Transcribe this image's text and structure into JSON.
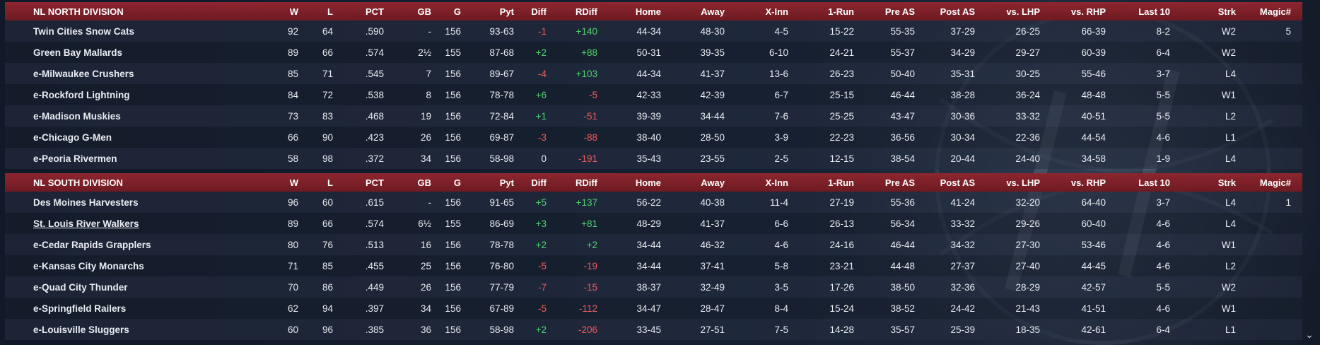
{
  "columns": {
    "w": "W",
    "l": "L",
    "pct": "PCT",
    "gb": "GB",
    "g": "G",
    "pyt": "Pyt",
    "diff": "Diff",
    "rdiff": "RDiff",
    "home": "Home",
    "away": "Away",
    "xinn": "X-Inn",
    "onerun": "1-Run",
    "preas": "Pre AS",
    "postas": "Post AS",
    "lhp": "vs. LHP",
    "rhp": "vs. RHP",
    "last10": "Last 10",
    "strk": "Strk",
    "magic": "Magic#"
  },
  "divisions": [
    {
      "name": "NL NORTH DIVISION",
      "teams": [
        {
          "name": "Twin Cities Snow Cats",
          "w": "92",
          "l": "64",
          "pct": ".590",
          "gb": "-",
          "g": "156",
          "pyt": "93-63",
          "diff": "-1",
          "rdiff": "+140",
          "home": "44-34",
          "away": "48-30",
          "xinn": "4-5",
          "onerun": "15-22",
          "preas": "55-35",
          "postas": "37-29",
          "lhp": "26-25",
          "rhp": "66-39",
          "last10": "8-2",
          "strk": "W2",
          "magic": "5"
        },
        {
          "name": "Green Bay  Mallards",
          "w": "89",
          "l": "66",
          "pct": ".574",
          "gb": "2½",
          "g": "155",
          "pyt": "87-68",
          "diff": "+2",
          "rdiff": "+88",
          "home": "50-31",
          "away": "39-35",
          "xinn": "6-10",
          "onerun": "24-21",
          "preas": "55-37",
          "postas": "34-29",
          "lhp": "29-27",
          "rhp": "60-39",
          "last10": "6-4",
          "strk": "W2",
          "magic": ""
        },
        {
          "name": "e-Milwaukee Crushers",
          "w": "85",
          "l": "71",
          "pct": ".545",
          "gb": "7",
          "g": "156",
          "pyt": "89-67",
          "diff": "-4",
          "rdiff": "+103",
          "home": "44-34",
          "away": "41-37",
          "xinn": "13-6",
          "onerun": "26-23",
          "preas": "50-40",
          "postas": "35-31",
          "lhp": "30-25",
          "rhp": "55-46",
          "last10": "3-7",
          "strk": "L4",
          "magic": ""
        },
        {
          "name": "e-Rockford Lightning",
          "w": "84",
          "l": "72",
          "pct": ".538",
          "gb": "8",
          "g": "156",
          "pyt": "78-78",
          "diff": "+6",
          "rdiff": "-5",
          "home": "42-33",
          "away": "42-39",
          "xinn": "6-7",
          "onerun": "25-15",
          "preas": "46-44",
          "postas": "38-28",
          "lhp": "36-24",
          "rhp": "48-48",
          "last10": "5-5",
          "strk": "W1",
          "magic": ""
        },
        {
          "name": "e-Madison Muskies",
          "w": "73",
          "l": "83",
          "pct": ".468",
          "gb": "19",
          "g": "156",
          "pyt": "72-84",
          "diff": "+1",
          "rdiff": "-51",
          "home": "39-39",
          "away": "34-44",
          "xinn": "7-6",
          "onerun": "25-25",
          "preas": "43-47",
          "postas": "30-36",
          "lhp": "33-32",
          "rhp": "40-51",
          "last10": "5-5",
          "strk": "L2",
          "magic": ""
        },
        {
          "name": "e-Chicago G-Men",
          "w": "66",
          "l": "90",
          "pct": ".423",
          "gb": "26",
          "g": "156",
          "pyt": "69-87",
          "diff": "-3",
          "rdiff": "-88",
          "home": "38-40",
          "away": "28-50",
          "xinn": "3-9",
          "onerun": "22-23",
          "preas": "36-56",
          "postas": "30-34",
          "lhp": "22-36",
          "rhp": "44-54",
          "last10": "4-6",
          "strk": "L1",
          "magic": ""
        },
        {
          "name": "e-Peoria Rivermen",
          "w": "58",
          "l": "98",
          "pct": ".372",
          "gb": "34",
          "g": "156",
          "pyt": "58-98",
          "diff": "0",
          "rdiff": "-191",
          "home": "35-43",
          "away": "23-55",
          "xinn": "2-5",
          "onerun": "12-15",
          "preas": "38-54",
          "postas": "20-44",
          "lhp": "24-40",
          "rhp": "34-58",
          "last10": "1-9",
          "strk": "L4",
          "magic": ""
        }
      ]
    },
    {
      "name": "NL SOUTH DIVISION",
      "teams": [
        {
          "name": "Des Moines Harvesters",
          "w": "96",
          "l": "60",
          "pct": ".615",
          "gb": "-",
          "g": "156",
          "pyt": "91-65",
          "diff": "+5",
          "rdiff": "+137",
          "home": "56-22",
          "away": "40-38",
          "xinn": "11-4",
          "onerun": "27-19",
          "preas": "55-36",
          "postas": "41-24",
          "lhp": "32-20",
          "rhp": "64-40",
          "last10": "3-7",
          "strk": "L4",
          "magic": "1"
        },
        {
          "name": "St. Louis River Walkers",
          "w": "89",
          "l": "66",
          "pct": ".574",
          "gb": "6½",
          "g": "155",
          "pyt": "86-69",
          "diff": "+3",
          "rdiff": "+81",
          "home": "48-29",
          "away": "41-37",
          "xinn": "6-6",
          "onerun": "26-13",
          "preas": "56-34",
          "postas": "33-32",
          "lhp": "29-26",
          "rhp": "60-40",
          "last10": "4-6",
          "strk": "L4",
          "magic": "",
          "highlight": true
        },
        {
          "name": "e-Cedar Rapids Grapplers",
          "w": "80",
          "l": "76",
          "pct": ".513",
          "gb": "16",
          "g": "156",
          "pyt": "78-78",
          "diff": "+2",
          "rdiff": "+2",
          "home": "34-44",
          "away": "46-32",
          "xinn": "4-6",
          "onerun": "24-16",
          "preas": "46-44",
          "postas": "34-32",
          "lhp": "27-30",
          "rhp": "53-46",
          "last10": "4-6",
          "strk": "W1",
          "magic": ""
        },
        {
          "name": "e-Kansas City Monarchs",
          "w": "71",
          "l": "85",
          "pct": ".455",
          "gb": "25",
          "g": "156",
          "pyt": "76-80",
          "diff": "-5",
          "rdiff": "-19",
          "home": "34-44",
          "away": "37-41",
          "xinn": "5-8",
          "onerun": "23-21",
          "preas": "44-48",
          "postas": "27-37",
          "lhp": "27-40",
          "rhp": "44-45",
          "last10": "4-6",
          "strk": "L2",
          "magic": ""
        },
        {
          "name": "e-Quad City Thunder",
          "w": "70",
          "l": "86",
          "pct": ".449",
          "gb": "26",
          "g": "156",
          "pyt": "77-79",
          "diff": "-7",
          "rdiff": "-15",
          "home": "38-37",
          "away": "32-49",
          "xinn": "3-5",
          "onerun": "17-26",
          "preas": "38-50",
          "postas": "32-36",
          "lhp": "28-29",
          "rhp": "42-57",
          "last10": "5-5",
          "strk": "W2",
          "magic": ""
        },
        {
          "name": "e-Springfield Railers",
          "w": "62",
          "l": "94",
          "pct": ".397",
          "gb": "34",
          "g": "156",
          "pyt": "67-89",
          "diff": "-5",
          "rdiff": "-112",
          "home": "34-47",
          "away": "28-47",
          "xinn": "8-4",
          "onerun": "15-24",
          "preas": "38-52",
          "postas": "24-42",
          "lhp": "21-43",
          "rhp": "41-51",
          "last10": "4-6",
          "strk": "W1",
          "magic": ""
        },
        {
          "name": "e-Louisville Sluggers",
          "w": "60",
          "l": "96",
          "pct": ".385",
          "gb": "36",
          "g": "156",
          "pyt": "58-98",
          "diff": "+2",
          "rdiff": "-206",
          "home": "33-45",
          "away": "27-51",
          "xinn": "7-5",
          "onerun": "14-28",
          "preas": "35-57",
          "postas": "25-39",
          "lhp": "18-35",
          "rhp": "42-61",
          "last10": "6-4",
          "strk": "L1",
          "magic": ""
        }
      ]
    }
  ],
  "scroll_icon": "chevron-down-icon"
}
